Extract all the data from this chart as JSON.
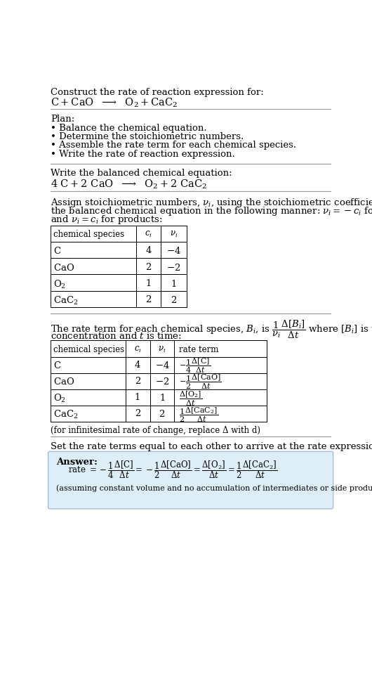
{
  "bg_color": "#ffffff",
  "text_color": "#000000",
  "answer_bg": "#ddeeff",
  "title_line1": "Construct the rate of reaction expression for:",
  "plan_header": "Plan:",
  "plan_items": [
    "• Balance the chemical equation.",
    "• Determine the stoichiometric numbers.",
    "• Assemble the rate term for each chemical species.",
    "• Write the rate of reaction expression."
  ],
  "balanced_header": "Write the balanced chemical equation:",
  "table1_headers": [
    "chemical species",
    "c_i",
    "v_i"
  ],
  "table1_rows": [
    [
      "C",
      "4",
      "−4"
    ],
    [
      "CaO",
      "2",
      "−2"
    ],
    [
      "O_2",
      "1",
      "1"
    ],
    [
      "CaC_2",
      "2",
      "2"
    ]
  ],
  "table2_headers": [
    "chemical species",
    "c_i",
    "v_i",
    "rate term"
  ],
  "table2_rows": [
    [
      "C",
      "4",
      "−4",
      "neg_quarter"
    ],
    [
      "CaO",
      "2",
      "−2",
      "neg_half"
    ],
    [
      "O_2",
      "1",
      "1",
      "O2_rate"
    ],
    [
      "CaC_2",
      "2",
      "2",
      "half_CaC2"
    ]
  ],
  "infinitesimal_note": "(for infinitesimal rate of change, replace Δ with d)",
  "set_equal_text": "Set the rate terms equal to each other to arrive at the rate expression:",
  "answer_label": "Answer:",
  "answer_note": "(assuming constant volume and no accumulation of intermediates or side products)"
}
